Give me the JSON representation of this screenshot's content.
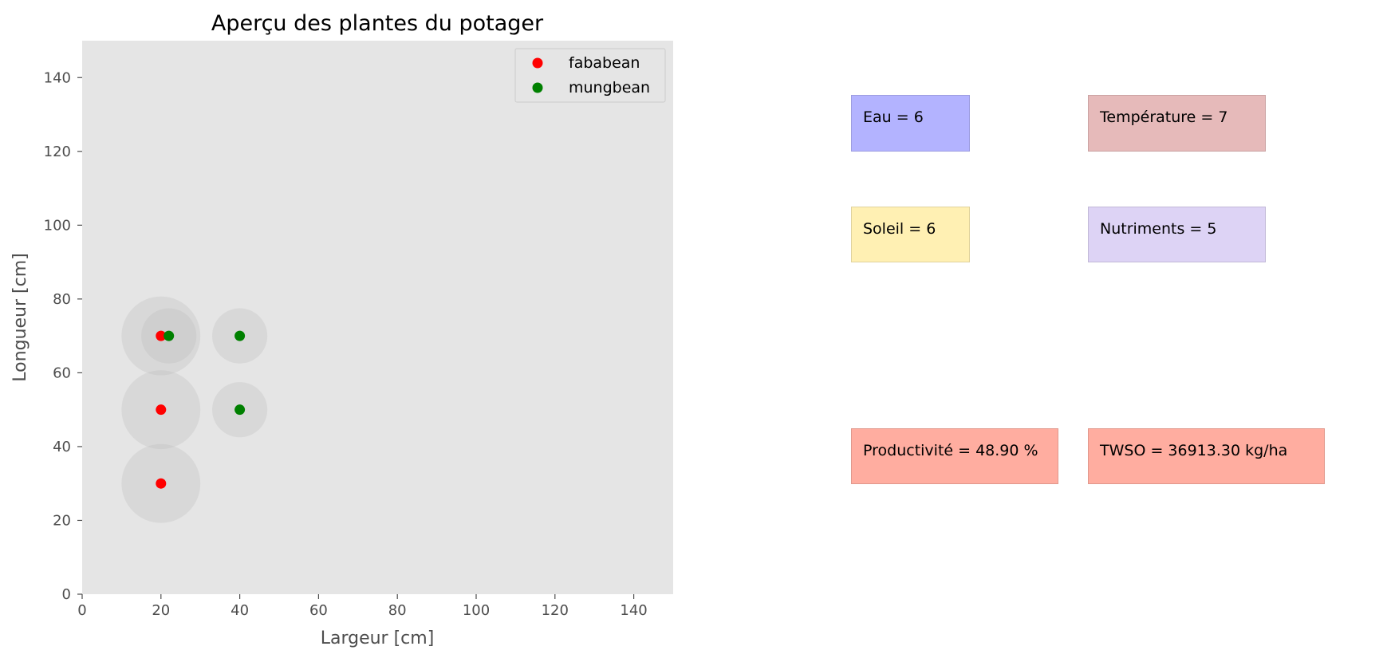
{
  "chart_data": {
    "type": "scatter",
    "title": "Aperçu des plantes du potager",
    "xlabel": "Largeur [cm]",
    "ylabel": "Longueur [cm]",
    "xlim": [
      0,
      150
    ],
    "ylim": [
      0,
      150
    ],
    "xticks": [
      0,
      20,
      40,
      60,
      80,
      100,
      120,
      140
    ],
    "yticks": [
      0,
      20,
      40,
      60,
      80,
      100,
      120,
      140
    ],
    "grid": false,
    "legend_position": "top-right",
    "series": [
      {
        "name": "fababean",
        "color": "#ff0000",
        "points": [
          [
            20,
            70
          ],
          [
            20,
            50
          ],
          [
            20,
            30
          ]
        ],
        "radius": 10
      },
      {
        "name": "mungbean",
        "color": "#008000",
        "points": [
          [
            22,
            70
          ],
          [
            40,
            70
          ],
          [
            40,
            50
          ]
        ],
        "radius": 7
      }
    ]
  },
  "stats": {
    "eau": {
      "label": "Eau = 6",
      "color": "#b3b3ff"
    },
    "temperature": {
      "label": "Température = 7",
      "color": "#e6baba"
    },
    "soleil": {
      "label": "Soleil = 6",
      "color": "#fff0b3"
    },
    "nutriments": {
      "label": "Nutriments = 5",
      "color": "#ddd3f5"
    },
    "productivite": {
      "label": "Productivité = 48.90 %",
      "color": "#ffada0"
    },
    "twso": {
      "label": "TWSO = 36913.30 kg/ha",
      "color": "#ffada0"
    }
  }
}
